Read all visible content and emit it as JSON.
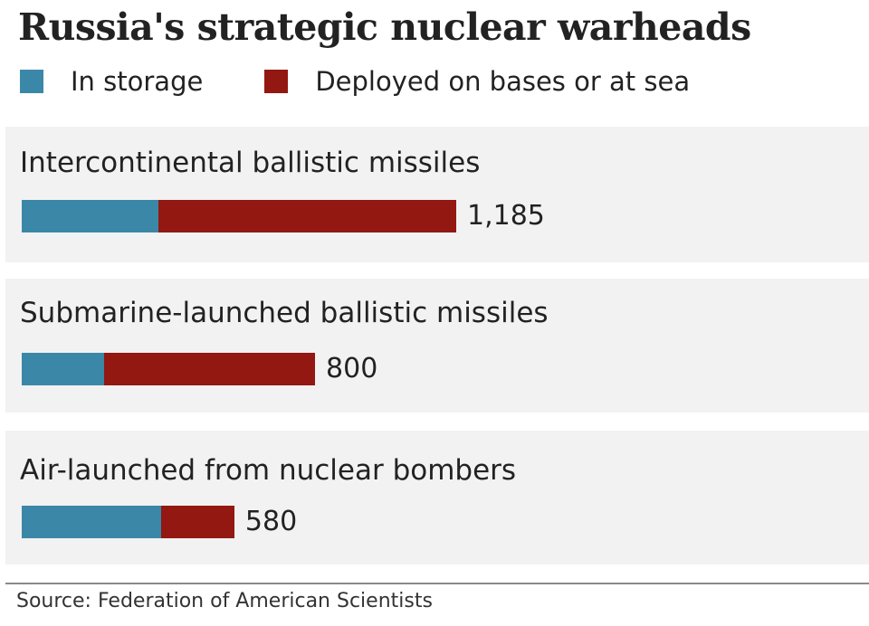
{
  "colors": {
    "storage": "#3b87a7",
    "deployed": "#921811",
    "panel": "#f2f2f2"
  },
  "chart_data": {
    "type": "bar",
    "orientation": "horizontal",
    "stacked": true,
    "title": "Russia's strategic nuclear warheads",
    "legend": [
      "In storage",
      "Deployed on bases or at sea"
    ],
    "legend_position": "top-left",
    "categories": [
      "Intercontinental ballistic missiles",
      "Submarine-launched ballistic missiles",
      "Air-launched from nuclear bombers"
    ],
    "totals": [
      1185,
      800,
      580
    ],
    "total_labels": [
      "1,185",
      "800",
      "580"
    ],
    "series": [
      {
        "name": "In storage",
        "values": [
          373,
          225,
          380
        ]
      },
      {
        "name": "Deployed on bases or at sea",
        "values": [
          812,
          575,
          200
        ]
      }
    ],
    "xlim": [
      0,
      1185
    ],
    "grid": false,
    "source": "Source: Federation of American Scientists"
  }
}
